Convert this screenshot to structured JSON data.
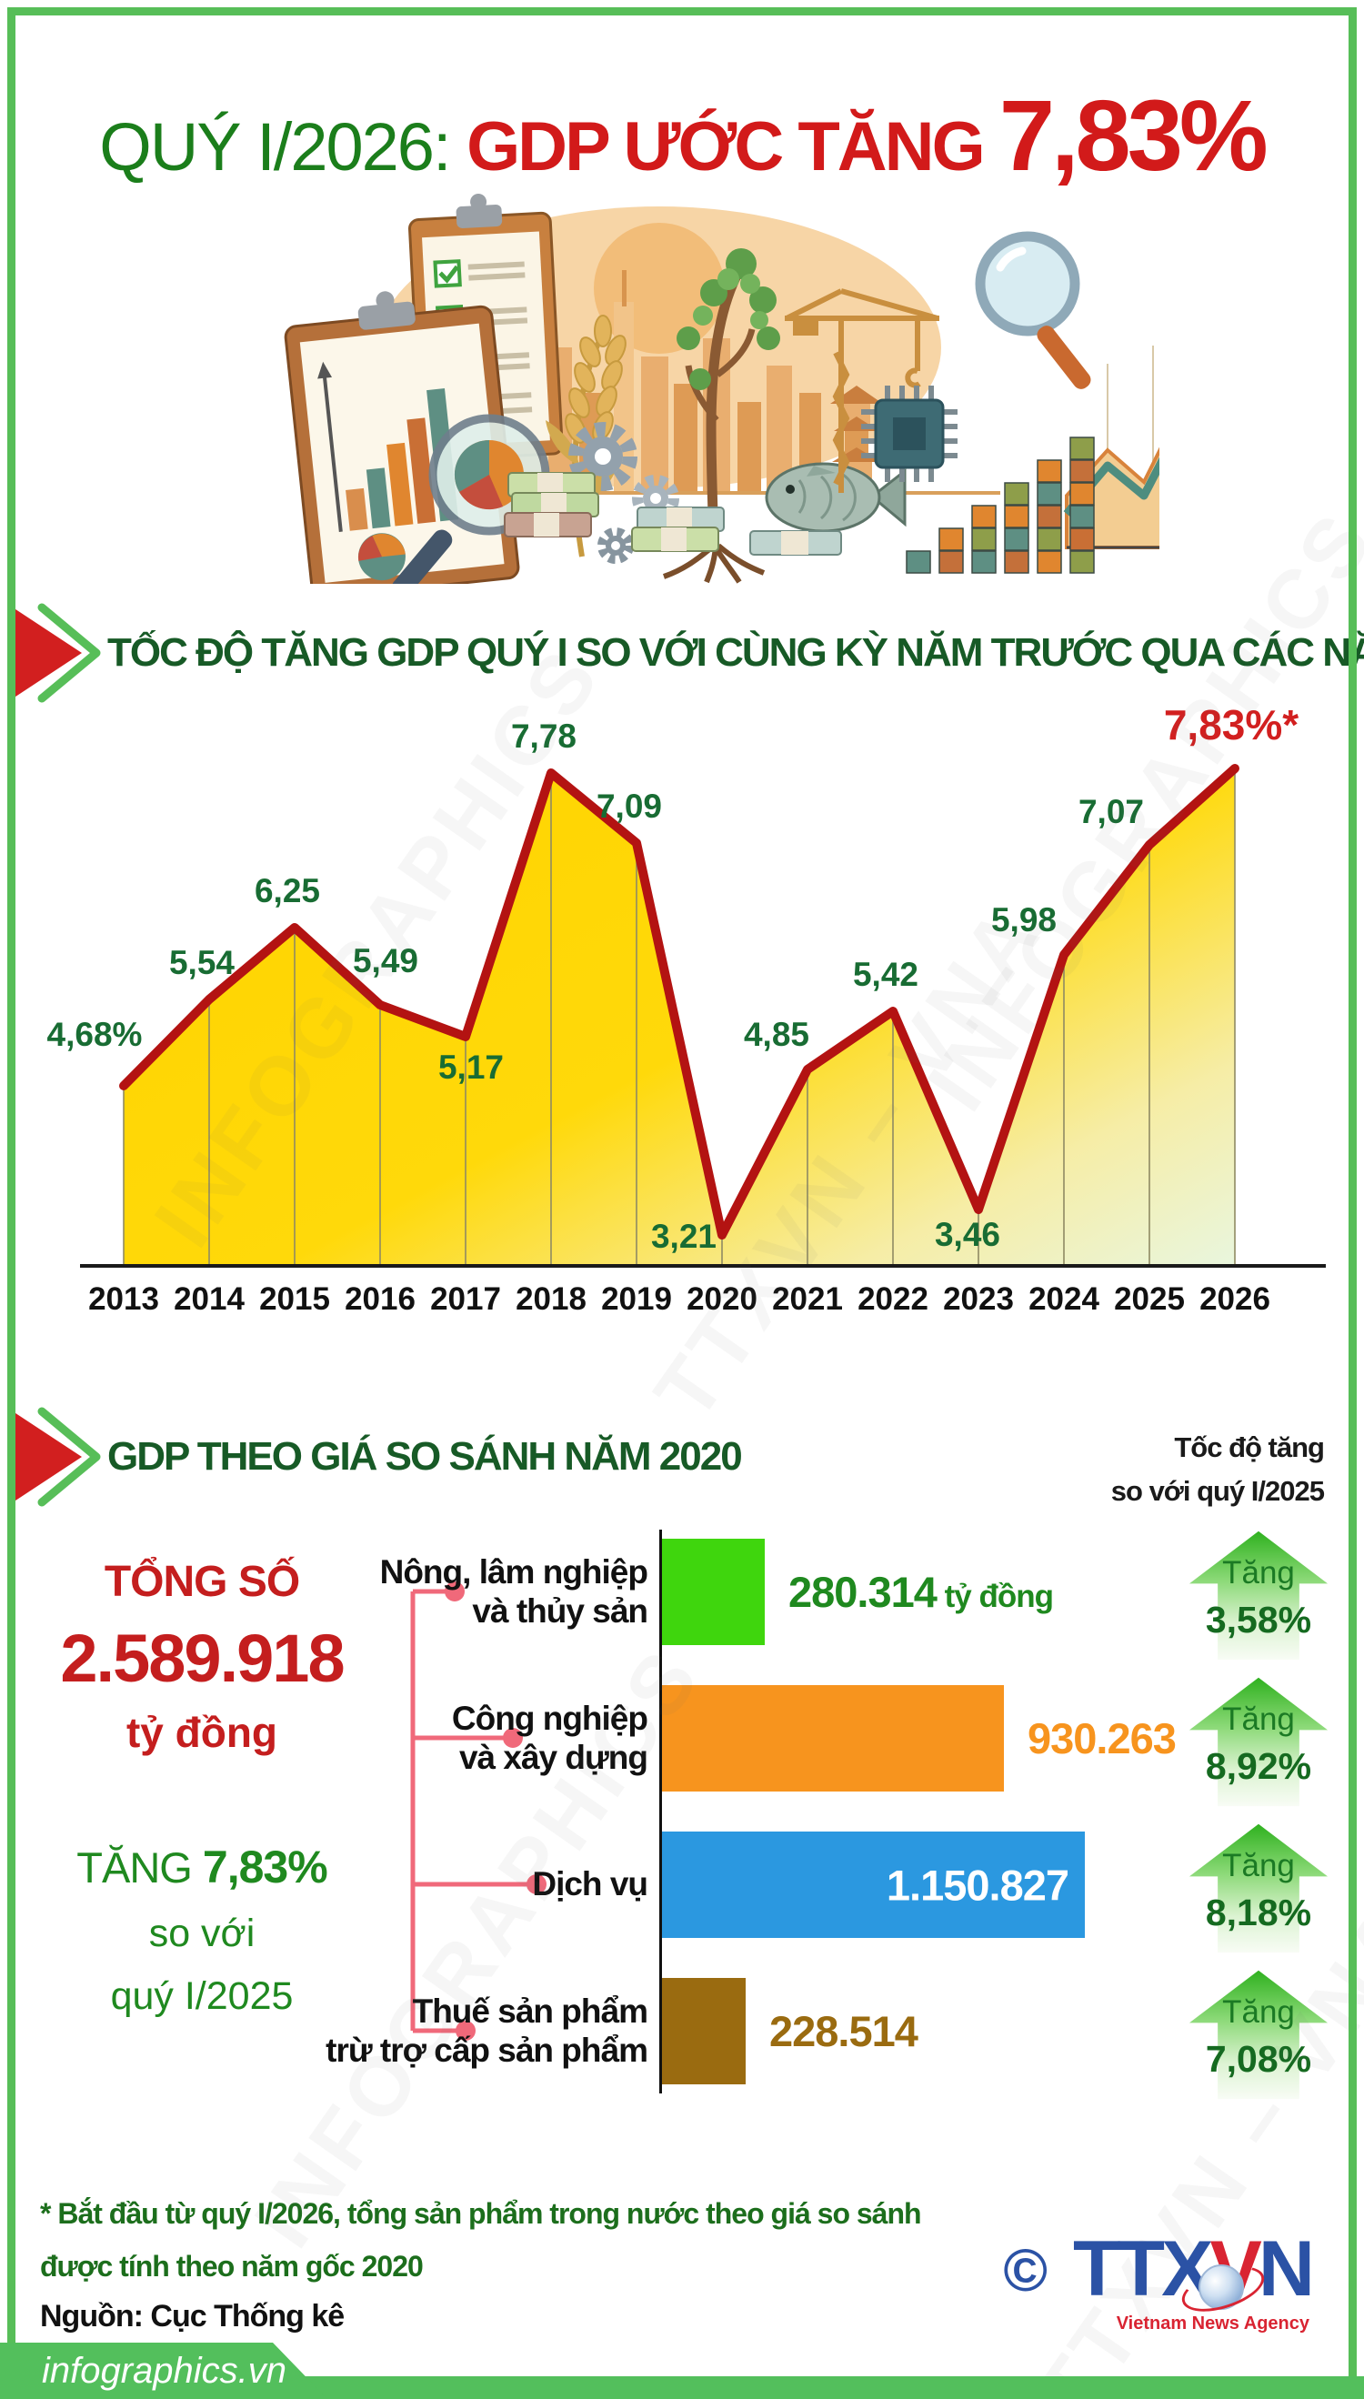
{
  "title": {
    "prefix": "QUÝ I/2026: ",
    "main": "GDP ƯỚC TĂNG ",
    "highlight": "7,83%"
  },
  "section1": {
    "heading": "TỐC ĐỘ TĂNG GDP QUÝ I SO VỚI CÙNG KỲ NĂM TRƯỚC QUA CÁC NĂM"
  },
  "section2": {
    "heading": "GDP THEO GIÁ SO SÁNH NĂM 2020",
    "right_note": "Tốc độ tăng\nso với quý I/2025",
    "total_label": "TỔNG SỐ",
    "total_value": "2.589.918",
    "total_unit": "tỷ đồng",
    "growth_word": "TĂNG ",
    "growth_value": "7,83%",
    "growth_note": "so với\nquý I/2025"
  },
  "chart_data": [
    {
      "type": "area",
      "title": "TỐC ĐỘ TĂNG GDP QUÝ I SO VỚI CÙNG KỲ NĂM TRƯỚC QUA CÁC NĂM",
      "x": [
        "2013",
        "2014",
        "2015",
        "2016",
        "2017",
        "2018",
        "2019",
        "2020",
        "2021",
        "2022",
        "2023",
        "2024",
        "2025",
        "2026"
      ],
      "values": [
        4.68,
        5.54,
        6.25,
        5.49,
        5.17,
        7.78,
        7.09,
        3.21,
        4.85,
        5.42,
        3.46,
        5.98,
        7.07,
        7.83
      ],
      "point_labels": [
        "4,68%",
        "5,54",
        "6,25",
        "5,49",
        "5,17",
        "7,78",
        "7,09",
        "3,21",
        "4,85",
        "5,42",
        "3,46",
        "5,98",
        "7,07",
        "7,83%*"
      ],
      "unit": "%",
      "ylim": [
        2.9,
        8.3
      ],
      "grid": "vertical-only",
      "legend": "none",
      "line_color": "#B31312",
      "area_color_top": "#FFD400",
      "area_color_bottom": "#E9F6DE",
      "label_color": "#186C33",
      "highlight_last_color": "#D21F1F"
    },
    {
      "type": "bar",
      "orientation": "horizontal",
      "unit": "tỷ đồng",
      "categories": [
        "Nông, lâm nghiệp và thủy sản",
        "Công nghiệp và xây dựng",
        "Dịch vụ",
        "Thuế sản phẩm trừ trợ cấp sản phẩm"
      ],
      "row_labels": [
        "Nông, lâm nghiệp\nvà thủy sản",
        "Công nghiệp\nvà xây dựng",
        "Dịch vụ",
        "Thuế sản phẩm\ntrừ trợ cấp sản phẩm"
      ],
      "values": [
        280314,
        930263,
        1150827,
        228514
      ],
      "value_labels": [
        "280.314",
        "930.263",
        "1.150.827",
        "228.514"
      ],
      "value_suffix_0": " tỷ đồng",
      "colors": [
        "#3FD60D",
        "#F7941E",
        "#2B98E0",
        "#9A6B10"
      ],
      "growth_word": "Tăng",
      "growth_labels": [
        "3,58%",
        "8,92%",
        "8,18%",
        "7,08%"
      ],
      "total": {
        "label": "TỔNG SỐ",
        "value": "2.589.918",
        "unit": "tỷ đồng",
        "growth": "7,83%",
        "vs": "so với quý I/2025"
      }
    }
  ],
  "footnote": "* Bắt đầu từ quý I/2026, tổng sản phẩm trong nước theo giá so sánh\nđược tính theo năm gốc 2020",
  "source": "Nguồn: Cục Thống kê",
  "brand": "infographics.vn",
  "copyright": "©",
  "logo": {
    "part1": "TTX",
    "part2": "V",
    "part3": "N",
    "agency": "Vietnam News Agency"
  },
  "watermarks": {
    "a": "INFOGRAPHICS",
    "b": "TTXVN – VNA"
  },
  "colors": {
    "frame_green": "#57BE58",
    "heading_green": "#175A26",
    "title_green": "#1B7E1B",
    "title_red": "#D21A1A",
    "total_red": "#C41E1E",
    "growth_green": "#1F891F",
    "connector_pink": "#F0697A",
    "arrow_green": "#2FB11F"
  }
}
